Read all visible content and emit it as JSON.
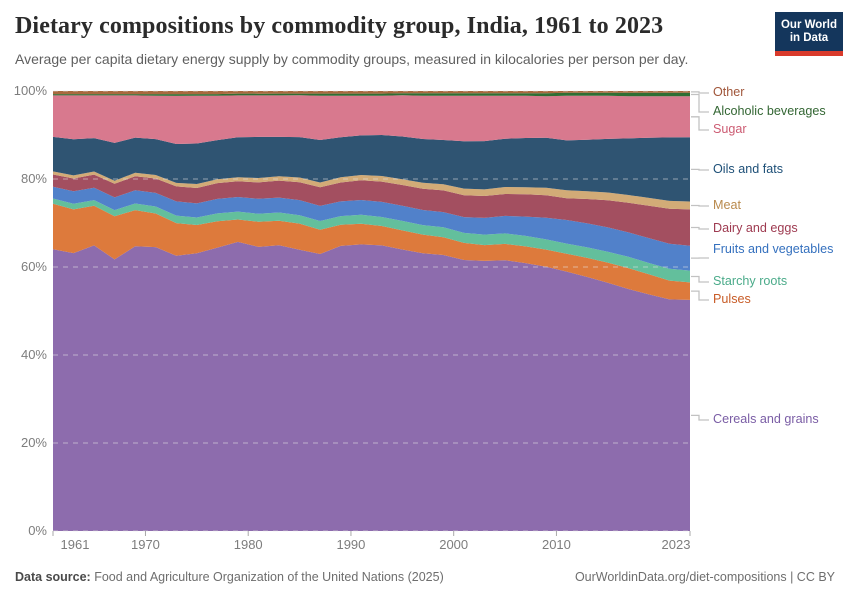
{
  "header": {
    "logo": {
      "line1": "Our World",
      "line2": "in Data"
    }
  },
  "footer": {
    "datasource_label": "Data source:",
    "datasource_value": "Food and Agriculture Organization of the United Nations (2025)",
    "link": "OurWorldinData.org/diet-compositions | CC BY"
  },
  "chart_data": {
    "type": "area",
    "stacked": true,
    "percent_scale": true,
    "title": "Dietary compositions by commodity group, India, 1961 to 2023",
    "subtitle": "Average per capita dietary energy supply by commodity groups, measured in kilocalories per person per day.",
    "legend_position": "right",
    "grid": true,
    "ylim": [
      0,
      100
    ],
    "y_ticks": [
      0,
      20,
      40,
      60,
      80,
      100
    ],
    "y_tick_labels": [
      "0%",
      "20%",
      "40%",
      "60%",
      "80%",
      "100%"
    ],
    "x_ticks": [
      1961,
      1970,
      1980,
      1990,
      2000,
      2010,
      2023
    ],
    "x": [
      1961,
      1963,
      1965,
      1967,
      1969,
      1971,
      1973,
      1975,
      1977,
      1979,
      1981,
      1983,
      1985,
      1987,
      1989,
      1991,
      1993,
      1995,
      1997,
      1999,
      2001,
      2003,
      2005,
      2007,
      2009,
      2011,
      2013,
      2015,
      2017,
      2019,
      2021,
      2023
    ],
    "unit": "%",
    "series": [
      {
        "name": "Cereals and grains",
        "color": "#8d6cad",
        "label_color": "#7a5da5",
        "values": [
          64.5,
          62.9,
          64.9,
          61.8,
          64.8,
          64.9,
          62.3,
          63.0,
          64.6,
          65.7,
          64.3,
          65.4,
          64.7,
          63.9,
          66.1,
          66.5,
          66.2,
          65.0,
          64.2,
          63.6,
          61.9,
          61.5,
          61.8,
          61.0,
          59.8,
          59.3,
          58.3,
          57.0,
          55.6,
          54.2,
          52.9,
          52.9
        ]
      },
      {
        "name": "Pulses",
        "color": "#dd7a3c",
        "label_color": "#c85c27",
        "values": [
          10.4,
          9.9,
          9.0,
          9.8,
          8.2,
          7.7,
          7.4,
          6.4,
          6.0,
          5.1,
          5.7,
          5.6,
          6.0,
          5.6,
          4.9,
          4.8,
          4.5,
          4.4,
          4.3,
          4.1,
          3.9,
          3.6,
          3.7,
          3.8,
          3.9,
          4.1,
          4.4,
          4.6,
          4.8,
          4.6,
          4.3,
          4.0
        ]
      },
      {
        "name": "Starchy roots",
        "color": "#63bf9c",
        "label_color": "#4bab8a",
        "values": [
          1.2,
          1.3,
          1.3,
          1.4,
          1.5,
          1.6,
          1.7,
          1.7,
          1.8,
          1.8,
          1.8,
          1.9,
          1.9,
          2.0,
          2.0,
          2.1,
          2.1,
          2.2,
          2.2,
          2.3,
          2.3,
          2.4,
          2.4,
          2.4,
          2.3,
          2.3,
          2.4,
          2.5,
          2.6,
          2.6,
          2.7,
          2.7
        ]
      },
      {
        "name": "Fruits and vegetables",
        "color": "#5181ca",
        "label_color": "#3470be",
        "values": [
          2.7,
          2.8,
          2.8,
          2.9,
          3.0,
          3.1,
          3.2,
          3.2,
          3.3,
          3.3,
          3.4,
          3.4,
          3.5,
          3.5,
          3.4,
          3.4,
          3.5,
          3.5,
          3.5,
          3.5,
          3.6,
          3.8,
          4.0,
          4.4,
          4.9,
          5.4,
          5.5,
          5.6,
          5.6,
          5.7,
          5.7,
          5.7
        ]
      },
      {
        "name": "Dairy and eggs",
        "color": "#a34f60",
        "label_color": "#9e3a50",
        "values": [
          2.8,
          2.9,
          3.0,
          3.1,
          3.2,
          3.3,
          3.4,
          3.5,
          3.6,
          3.6,
          3.7,
          3.9,
          4.1,
          4.3,
          4.4,
          4.6,
          4.7,
          4.8,
          4.9,
          5.0,
          5.0,
          5.0,
          5.0,
          5.1,
          5.1,
          5.0,
          5.6,
          6.2,
          6.8,
          7.4,
          8.0,
          8.3
        ]
      },
      {
        "name": "Meat",
        "color": "#d2ab77",
        "label_color": "#b98a4d",
        "values": [
          0.7,
          0.7,
          0.7,
          0.7,
          0.8,
          0.8,
          0.8,
          0.9,
          0.9,
          0.9,
          1.0,
          1.0,
          1.1,
          1.1,
          1.2,
          1.2,
          1.3,
          1.3,
          1.4,
          1.4,
          1.5,
          1.5,
          1.6,
          1.6,
          1.7,
          1.8,
          1.8,
          1.8,
          1.8,
          1.8,
          1.8,
          1.8
        ]
      },
      {
        "name": "Oils and fats",
        "color": "#2f5472",
        "label_color": "#1d4f77",
        "values": [
          7.9,
          8.2,
          7.6,
          8.6,
          8.0,
          8.2,
          8.8,
          9.2,
          8.9,
          9.1,
          9.3,
          9.0,
          9.3,
          9.8,
          9.3,
          9.2,
          9.5,
          9.9,
          10.1,
          10.2,
          10.8,
          11.0,
          11.0,
          11.2,
          11.3,
          11.4,
          11.8,
          12.3,
          13.0,
          13.8,
          14.5,
          14.7
        ]
      },
      {
        "name": "Sugar",
        "color": "#d8798e",
        "label_color": "#cc5b72",
        "values": [
          9.5,
          9.9,
          9.7,
          10.8,
          9.6,
          9.9,
          10.9,
          10.8,
          10.1,
          9.5,
          9.4,
          9.5,
          9.6,
          10.2,
          9.6,
          9.2,
          9.1,
          9.5,
          10.0,
          10.2,
          10.4,
          10.3,
          9.8,
          9.6,
          9.4,
          10.2,
          10.1,
          9.9,
          9.7,
          9.5,
          9.4,
          9.4
        ]
      },
      {
        "name": "Alcoholic beverages",
        "color": "#2f6e33",
        "label_color": "#336633",
        "values": [
          0.3,
          0.3,
          0.3,
          0.3,
          0.3,
          0.4,
          0.4,
          0.4,
          0.4,
          0.4,
          0.4,
          0.4,
          0.4,
          0.5,
          0.5,
          0.5,
          0.5,
          0.5,
          0.6,
          0.6,
          0.6,
          0.6,
          0.6,
          0.6,
          0.7,
          0.7,
          0.7,
          0.7,
          0.8,
          0.8,
          0.8,
          0.8
        ]
      },
      {
        "name": "Other",
        "color": "#a8693e",
        "label_color": "#a0563a",
        "values": [
          0.7,
          0.7,
          0.7,
          0.7,
          0.7,
          0.7,
          0.7,
          0.7,
          0.7,
          0.6,
          0.6,
          0.6,
          0.6,
          0.6,
          0.6,
          0.6,
          0.6,
          0.5,
          0.5,
          0.5,
          0.5,
          0.5,
          0.5,
          0.5,
          0.5,
          0.4,
          0.4,
          0.4,
          0.4,
          0.4,
          0.4,
          0.4
        ]
      }
    ]
  }
}
